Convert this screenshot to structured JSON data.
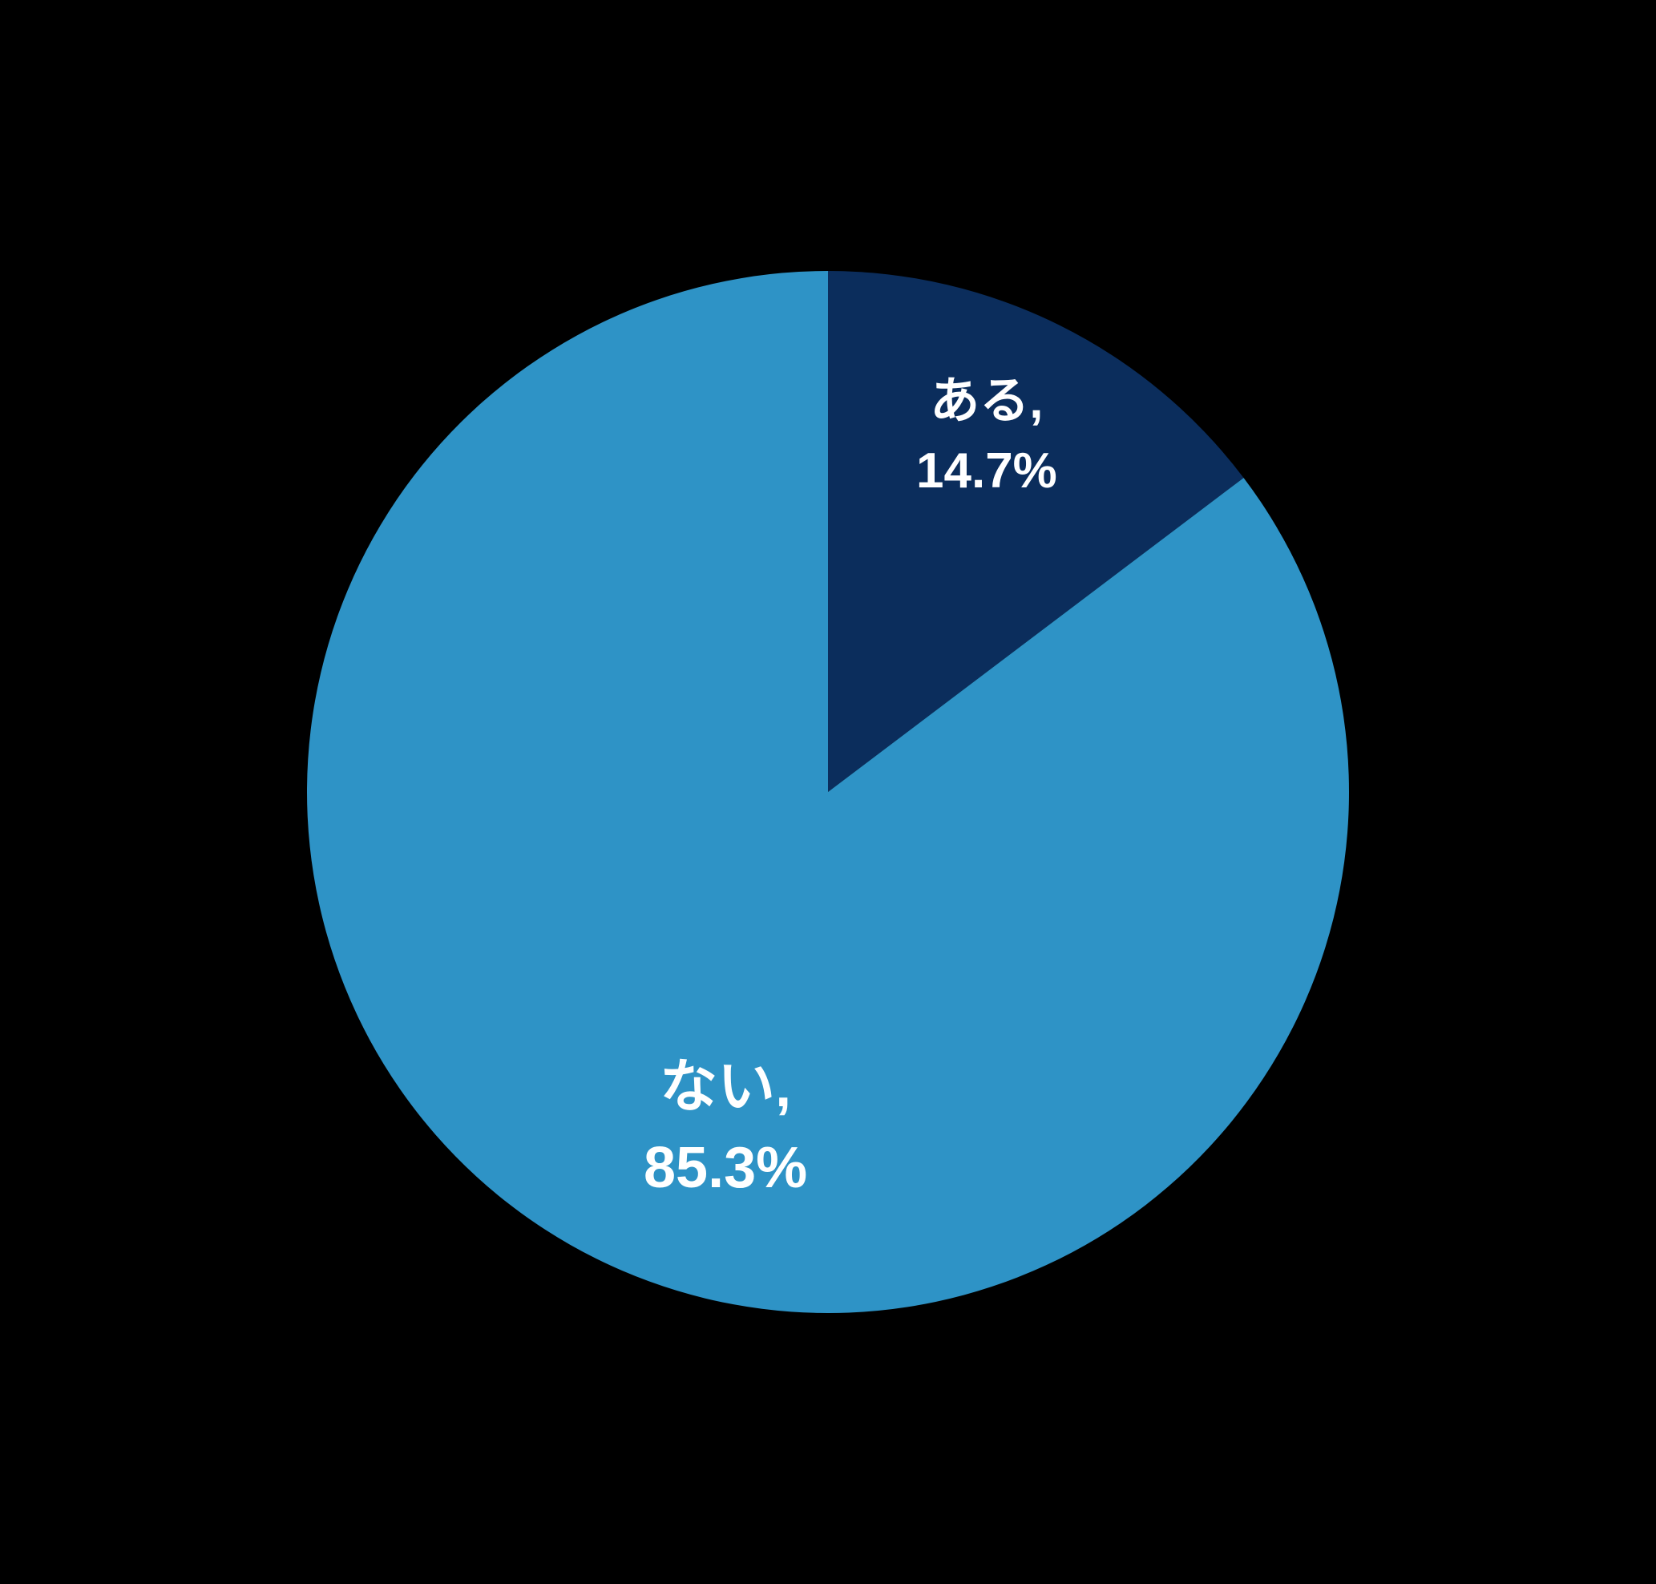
{
  "chart": {
    "type": "pie",
    "background_color": "#000000",
    "slices": [
      {
        "label": "ある",
        "value": 14.7,
        "percent_text": "14.7%",
        "display_text": "ある, \n14.7%",
        "color": "#0b2d5c",
        "label_color": "#ffffff",
        "label_fontsize": 62
      },
      {
        "label": "ない",
        "value": 85.3,
        "percent_text": "85.3%",
        "display_text": "ない, \n85.3%",
        "color": "#2e93c6",
        "label_color": "#ffffff",
        "label_fontsize": 72
      }
    ],
    "radius": 650,
    "start_angle": 0
  }
}
